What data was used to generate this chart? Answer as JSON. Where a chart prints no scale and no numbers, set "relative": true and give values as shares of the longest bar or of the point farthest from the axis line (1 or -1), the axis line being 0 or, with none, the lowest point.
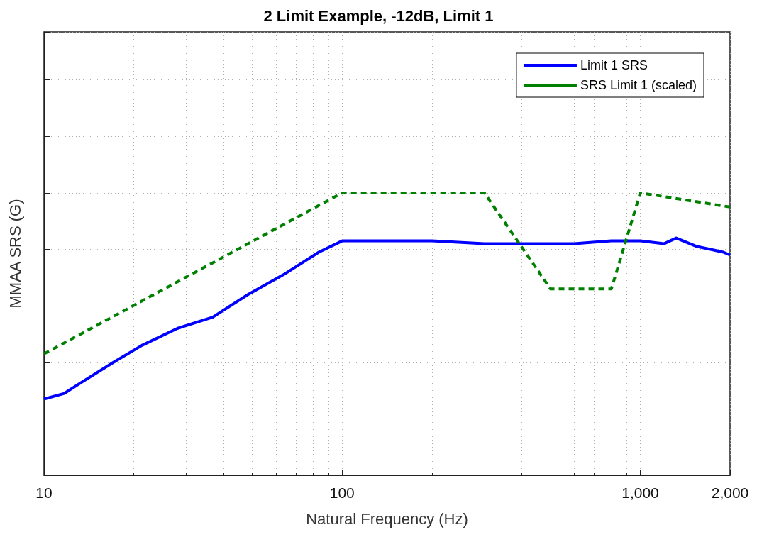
{
  "chart_data": {
    "type": "line",
    "title": "2 Limit Example, -12dB, Limit 1",
    "xlabel": "Natural Frequency (Hz)",
    "ylabel": "MMAA SRS (G)",
    "relative": true,
    "log": "x",
    "grid": true,
    "legend": "top right",
    "marker": "none",
    "xlim": [
      10,
      2000
    ],
    "xticks": [
      10,
      100,
      {
        "value": 1000,
        "label": "1,000"
      },
      {
        "value": 2000,
        "label": "2,000"
      }
    ],
    "series": [
      {
        "name": "Limit 1 SRS",
        "color": "#0000ff",
        "line_style": "solid",
        "x": [
          10,
          11.7,
          13.4,
          17.1,
          21.3,
          28,
          36.8,
          48.3,
          63.5,
          83.5,
          100,
          150,
          200,
          300,
          400,
          600,
          800,
          1000,
          1200,
          1320,
          1550,
          1720,
          1900,
          2000
        ],
        "values": [
          0.27,
          0.29,
          0.33,
          0.4,
          0.46,
          0.52,
          0.56,
          0.64,
          0.71,
          0.79,
          0.83,
          0.83,
          0.83,
          0.82,
          0.82,
          0.82,
          0.83,
          0.83,
          0.82,
          0.84,
          0.81,
          0.8,
          0.79,
          0.78
        ]
      },
      {
        "name": "SRS Limit 1 (scaled)",
        "color": "#008000",
        "line_style": "dashed",
        "x": [
          10,
          100,
          300,
          500,
          800,
          1000,
          2000
        ],
        "values": [
          0.43,
          1,
          1,
          0.66,
          0.66,
          1,
          0.95
        ]
      }
    ]
  }
}
